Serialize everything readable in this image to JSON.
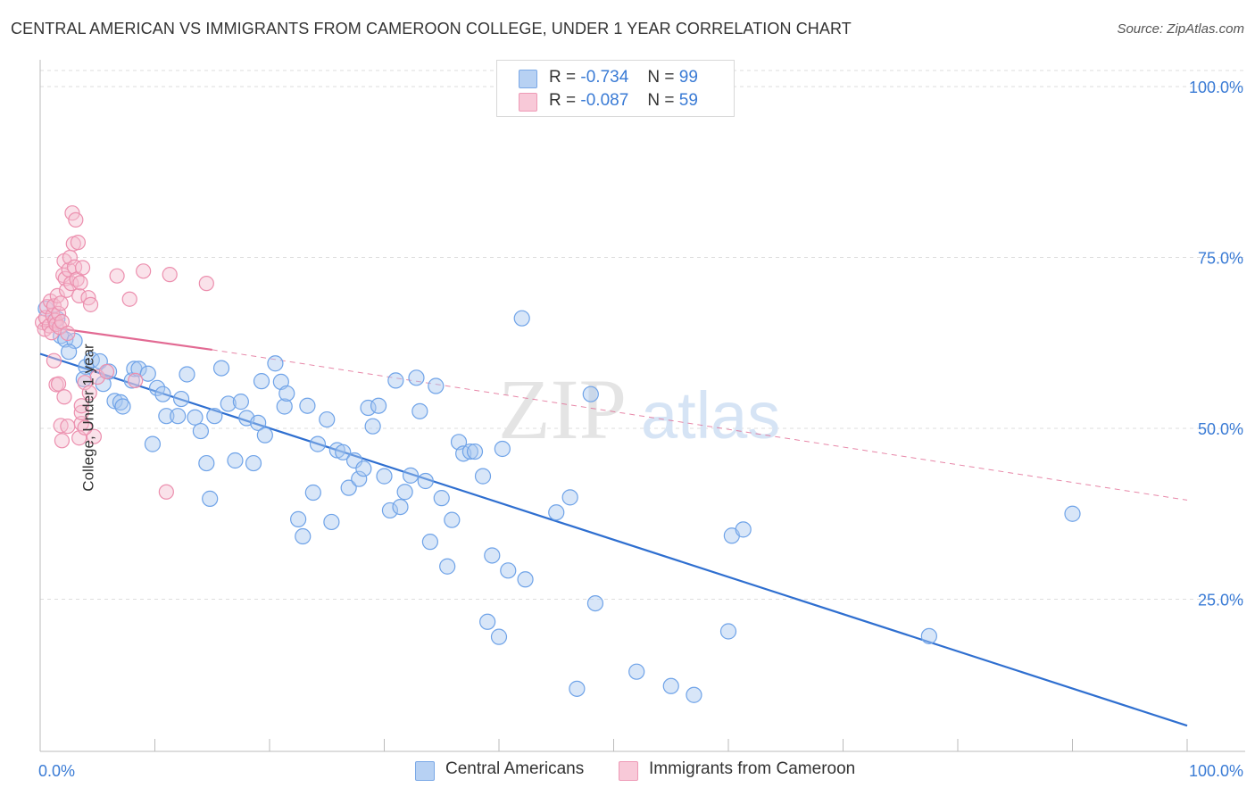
{
  "title": "CENTRAL AMERICAN VS IMMIGRANTS FROM CAMEROON COLLEGE, UNDER 1 YEAR CORRELATION CHART",
  "source": "Source: ZipAtlas.com",
  "watermark": {
    "zip": "ZIP",
    "atlas": "atlas"
  },
  "legend_top": {
    "rows": [
      {
        "r_label": "R =",
        "r_value": "-0.734",
        "n_label": "N =",
        "n_value": "99"
      },
      {
        "r_label": "R =",
        "r_value": "-0.087",
        "n_label": "N =",
        "n_value": "59"
      }
    ]
  },
  "legend_bottom": {
    "items": [
      {
        "label": "Central Americans"
      },
      {
        "label": "Immigrants from Cameroon"
      }
    ]
  },
  "chart_data": {
    "type": "scatter",
    "title": "CENTRAL AMERICAN VS IMMIGRANTS FROM CAMEROON COLLEGE, UNDER 1 YEAR CORRELATION CHART",
    "xlabel": "",
    "ylabel": "College, Under 1 year",
    "xlim": [
      0,
      100
    ],
    "ylim": [
      0,
      105
    ],
    "x_tick_labels": [
      "0.0%",
      "100.0%"
    ],
    "y_tick_labels": [
      "100.0%",
      "75.0%",
      "50.0%",
      "25.0%"
    ],
    "y_ticks": [
      100,
      75,
      50,
      25
    ],
    "grid": true,
    "colors": {
      "blue": "#6fa3e8",
      "blue_fill": "#a9c8f0",
      "blue_line": "#2f6fd0",
      "pink": "#ec8fae",
      "pink_fill": "#f5bfd1",
      "pink_line": "#e26a93",
      "axis_text": "#3a7bd5"
    },
    "series": [
      {
        "name": "Central Americans",
        "R": -0.734,
        "N": 99,
        "trend": {
          "x": [
            0,
            100
          ],
          "y": [
            60.9,
            6.5
          ],
          "style": "solid"
        },
        "points": [
          [
            0.5,
            67.5
          ],
          [
            1.5,
            66.0
          ],
          [
            1.8,
            63.5
          ],
          [
            2.2,
            63.0
          ],
          [
            3.0,
            62.8
          ],
          [
            2.5,
            61.2
          ],
          [
            4.0,
            59.0
          ],
          [
            4.5,
            60.0
          ],
          [
            5.2,
            59.8
          ],
          [
            5.5,
            56.5
          ],
          [
            3.8,
            57.2
          ],
          [
            6.0,
            58.3
          ],
          [
            6.5,
            54.0
          ],
          [
            7.0,
            53.8
          ],
          [
            7.2,
            53.2
          ],
          [
            8.0,
            57.0
          ],
          [
            8.2,
            58.7
          ],
          [
            8.6,
            58.7
          ],
          [
            9.4,
            58.0
          ],
          [
            10.2,
            55.9
          ],
          [
            10.7,
            55.0
          ],
          [
            11.0,
            51.8
          ],
          [
            9.8,
            47.7
          ],
          [
            12.0,
            51.8
          ],
          [
            12.3,
            54.3
          ],
          [
            12.8,
            57.9
          ],
          [
            13.5,
            51.6
          ],
          [
            14.0,
            49.6
          ],
          [
            14.5,
            44.9
          ],
          [
            14.8,
            39.7
          ],
          [
            15.2,
            51.8
          ],
          [
            15.8,
            58.8
          ],
          [
            16.4,
            53.6
          ],
          [
            17.0,
            45.3
          ],
          [
            17.5,
            53.9
          ],
          [
            18.0,
            51.5
          ],
          [
            18.6,
            44.9
          ],
          [
            19.0,
            50.8
          ],
          [
            19.6,
            49.0
          ],
          [
            19.3,
            56.9
          ],
          [
            20.5,
            59.5
          ],
          [
            21.0,
            56.8
          ],
          [
            21.3,
            53.2
          ],
          [
            21.5,
            55.1
          ],
          [
            22.5,
            36.7
          ],
          [
            22.9,
            34.2
          ],
          [
            23.3,
            53.3
          ],
          [
            23.8,
            40.6
          ],
          [
            24.2,
            47.7
          ],
          [
            25.0,
            51.3
          ],
          [
            25.4,
            36.3
          ],
          [
            25.9,
            46.8
          ],
          [
            26.4,
            46.5
          ],
          [
            26.9,
            41.3
          ],
          [
            27.4,
            45.3
          ],
          [
            27.8,
            42.6
          ],
          [
            28.2,
            44.1
          ],
          [
            28.6,
            53.0
          ],
          [
            29.0,
            50.3
          ],
          [
            29.5,
            53.3
          ],
          [
            30.0,
            43.0
          ],
          [
            30.5,
            38.0
          ],
          [
            31.0,
            57.0
          ],
          [
            31.4,
            38.5
          ],
          [
            31.8,
            40.7
          ],
          [
            32.3,
            43.1
          ],
          [
            32.8,
            57.4
          ],
          [
            33.1,
            52.5
          ],
          [
            33.6,
            42.3
          ],
          [
            34.0,
            33.4
          ],
          [
            34.5,
            56.2
          ],
          [
            35.0,
            39.8
          ],
          [
            35.5,
            29.8
          ],
          [
            35.9,
            36.6
          ],
          [
            36.5,
            48.0
          ],
          [
            36.9,
            46.3
          ],
          [
            37.5,
            46.6
          ],
          [
            37.9,
            46.6
          ],
          [
            38.6,
            43.0
          ],
          [
            39.0,
            21.7
          ],
          [
            39.4,
            31.4
          ],
          [
            40.0,
            19.5
          ],
          [
            40.3,
            47.0
          ],
          [
            40.8,
            29.2
          ],
          [
            42.0,
            66.1
          ],
          [
            42.3,
            27.9
          ],
          [
            45.0,
            37.7
          ],
          [
            46.2,
            39.9
          ],
          [
            46.8,
            11.9
          ],
          [
            48.0,
            55.0
          ],
          [
            48.4,
            24.4
          ],
          [
            52.0,
            14.4
          ],
          [
            55.0,
            12.3
          ],
          [
            57.0,
            11.0
          ],
          [
            60.0,
            20.3
          ],
          [
            60.3,
            34.3
          ],
          [
            61.3,
            35.2
          ],
          [
            77.5,
            19.6
          ],
          [
            90.0,
            37.5
          ]
        ]
      },
      {
        "name": "Immigrants from Cameroon",
        "R": -0.087,
        "N": 59,
        "trend": {
          "x": [
            0,
            15
          ],
          "y": [
            65.0,
            61.5
          ],
          "style": "solid",
          "extended": {
            "x": [
              15,
              100
            ],
            "y": [
              61.5,
              39.5
            ],
            "style": "dashed"
          }
        },
        "points": [
          [
            0.2,
            65.5
          ],
          [
            0.4,
            64.5
          ],
          [
            0.5,
            66.2
          ],
          [
            0.6,
            67.8
          ],
          [
            0.8,
            65.0
          ],
          [
            0.9,
            68.6
          ],
          [
            1.0,
            64.0
          ],
          [
            1.1,
            66.5
          ],
          [
            1.2,
            67.9
          ],
          [
            1.3,
            65.8
          ],
          [
            1.4,
            65.2
          ],
          [
            1.5,
            69.4
          ],
          [
            1.6,
            66.8
          ],
          [
            1.7,
            64.8
          ],
          [
            1.8,
            68.3
          ],
          [
            1.9,
            65.6
          ],
          [
            2.0,
            72.4
          ],
          [
            2.1,
            74.5
          ],
          [
            2.2,
            71.9
          ],
          [
            2.3,
            70.2
          ],
          [
            2.4,
            63.9
          ],
          [
            2.5,
            73.2
          ],
          [
            2.6,
            75.0
          ],
          [
            2.7,
            71.2
          ],
          [
            2.8,
            81.5
          ],
          [
            2.9,
            77.0
          ],
          [
            3.0,
            73.6
          ],
          [
            3.1,
            80.5
          ],
          [
            3.2,
            71.8
          ],
          [
            3.3,
            77.2
          ],
          [
            3.4,
            69.4
          ],
          [
            3.5,
            71.3
          ],
          [
            3.7,
            73.5
          ],
          [
            3.9,
            56.7
          ],
          [
            4.2,
            69.1
          ],
          [
            4.4,
            68.1
          ],
          [
            4.7,
            48.8
          ],
          [
            5.0,
            57.5
          ],
          [
            5.8,
            58.3
          ],
          [
            6.7,
            72.3
          ],
          [
            7.8,
            68.9
          ],
          [
            8.3,
            57.0
          ],
          [
            9.0,
            73.0
          ],
          [
            11.3,
            72.5
          ],
          [
            11.0,
            40.7
          ],
          [
            14.5,
            71.2
          ],
          [
            1.2,
            59.9
          ],
          [
            1.4,
            56.4
          ],
          [
            1.6,
            56.5
          ],
          [
            1.8,
            50.4
          ],
          [
            1.9,
            48.2
          ],
          [
            2.1,
            54.6
          ],
          [
            2.4,
            50.3
          ],
          [
            3.6,
            50.7
          ],
          [
            3.4,
            48.6
          ],
          [
            3.6,
            52.3
          ],
          [
            3.6,
            53.3
          ],
          [
            3.9,
            50.1
          ],
          [
            4.3,
            55.2
          ]
        ]
      }
    ]
  }
}
